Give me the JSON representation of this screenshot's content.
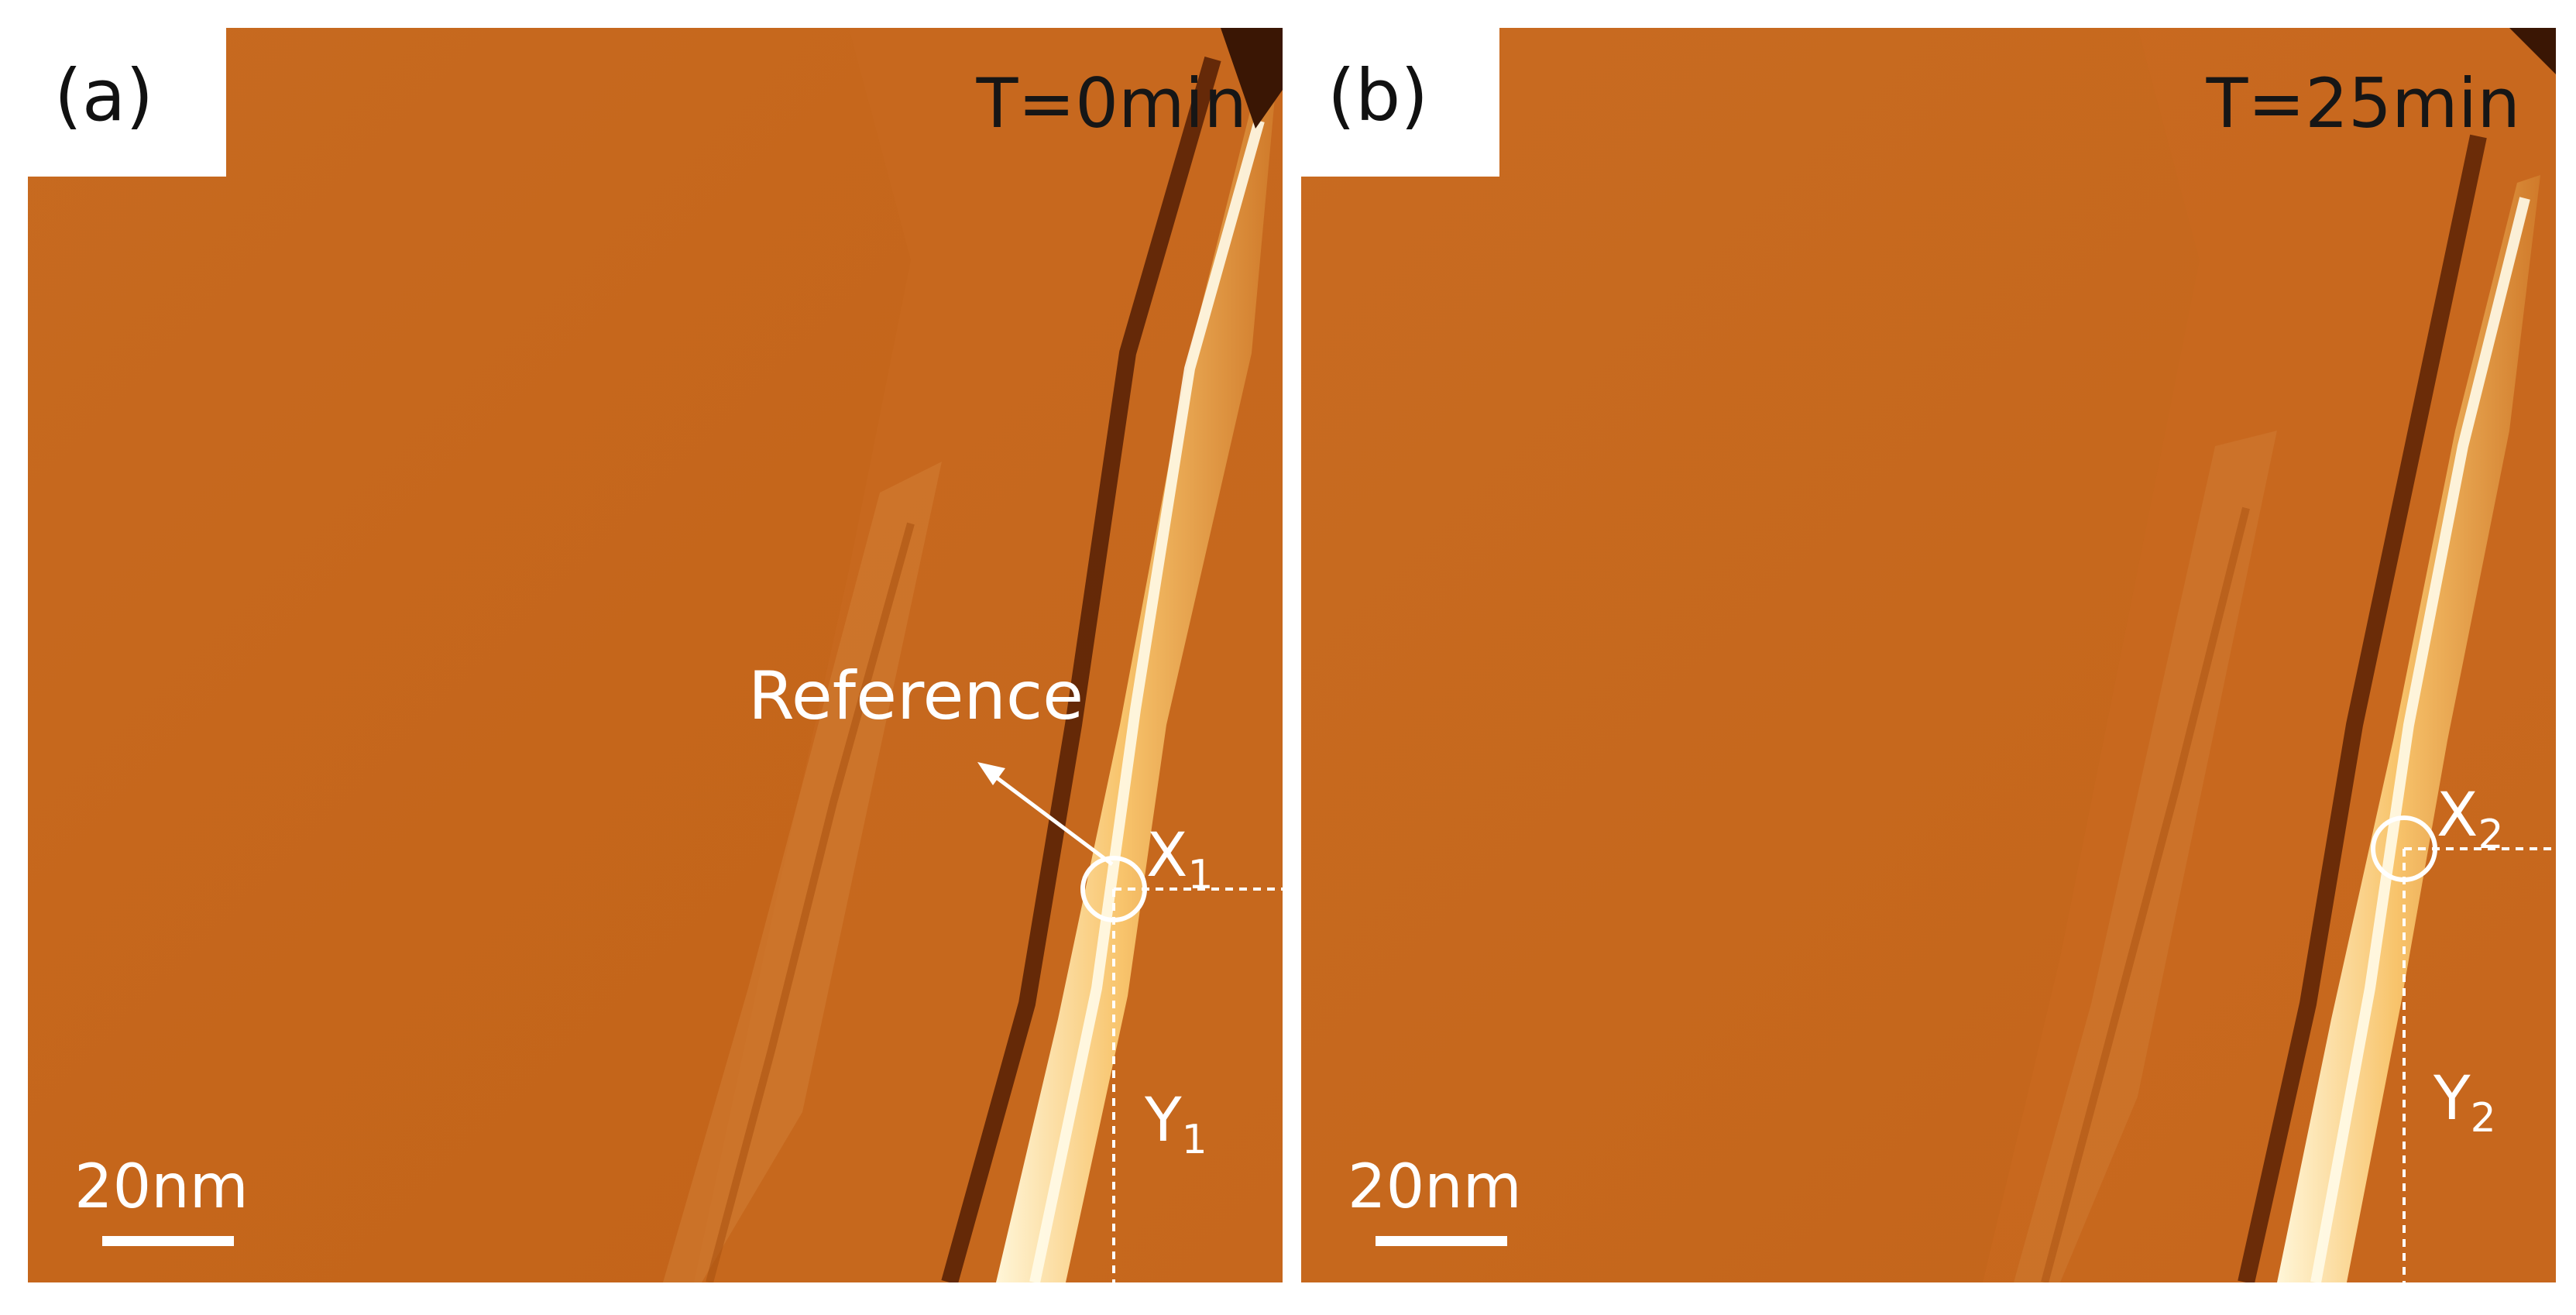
{
  "panels": [
    {
      "label": "(a)",
      "time": "T=0min",
      "scale": "20nm",
      "reference_label": "Reference",
      "x_label": "X",
      "x_sub": "1",
      "y_label": "Y",
      "y_sub": "1"
    },
    {
      "label": "(b)",
      "time": "T=25min",
      "scale": "20nm",
      "x_label": "X",
      "x_sub": "2",
      "y_label": "Y",
      "y_sub": "2"
    }
  ],
  "colors": {
    "background": "#c6661b",
    "terrace_dark": "#b85612",
    "step_bright": "#fff3cc",
    "annotation": "#ffffff"
  }
}
